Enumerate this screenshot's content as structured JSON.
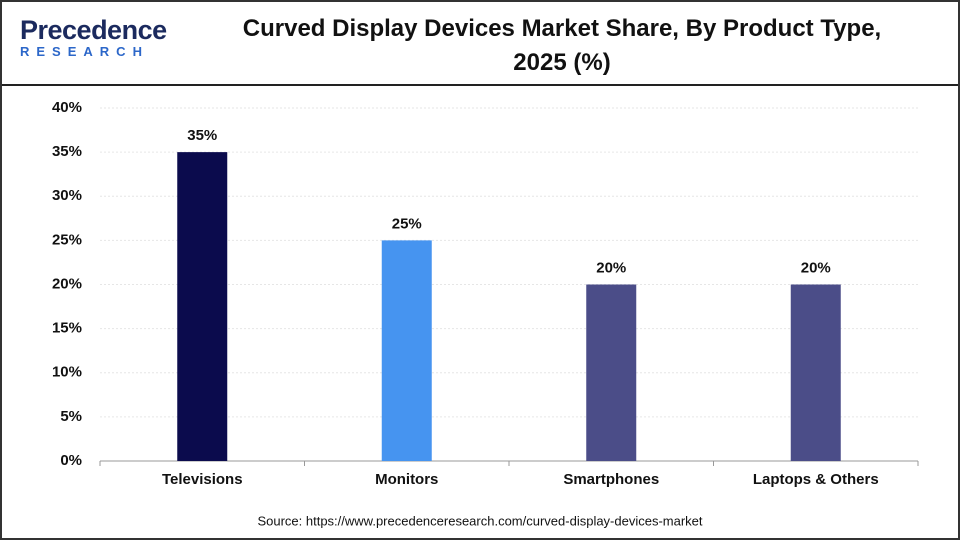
{
  "logo": {
    "name": "Precedence",
    "tagline": "RESEARCH"
  },
  "chart_data": {
    "type": "bar",
    "title": "Curved Display Devices Market Share, By Product Type, 2025 (%)",
    "categories": [
      "Televisions",
      "Monitors",
      "Smartphones",
      "Laptops & Others"
    ],
    "values": [
      35,
      25,
      20,
      20
    ],
    "value_labels": [
      "35%",
      "25%",
      "20%",
      "20%"
    ],
    "colors": [
      "#0b0b4d",
      "#4694f0",
      "#4b4d88",
      "#4b4d88"
    ],
    "ylim": [
      0,
      40
    ],
    "yticks": [
      {
        "value": 0,
        "label": "0%"
      },
      {
        "value": 5,
        "label": "5%"
      },
      {
        "value": 10,
        "label": "10%"
      },
      {
        "value": 15,
        "label": "15%"
      },
      {
        "value": 20,
        "label": "20%"
      },
      {
        "value": 25,
        "label": "25%"
      },
      {
        "value": 30,
        "label": "30%"
      },
      {
        "value": 35,
        "label": "35%"
      },
      {
        "value": 40,
        "label": "40%"
      }
    ],
    "grid": true,
    "source": "Source: https://www.precedenceresearch.com/curved-display-devices-market"
  }
}
